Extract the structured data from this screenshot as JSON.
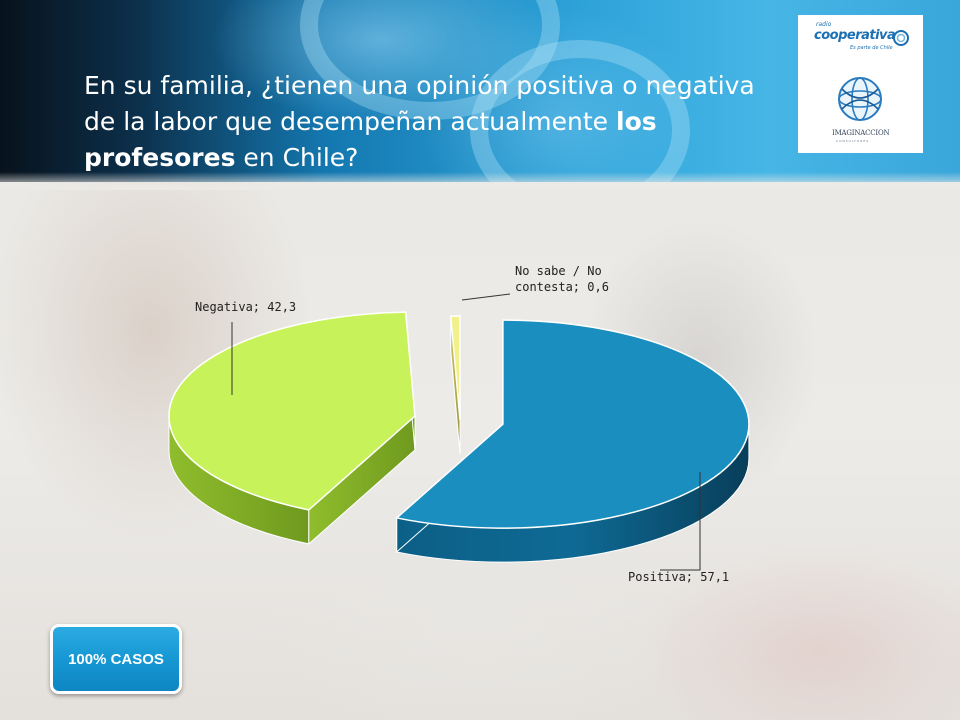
{
  "header": {
    "title_part1": "En su familia, ¿tienen una opinión positiva o negativa de la labor que desempeñan actualmente ",
    "title_bold": "los profesores",
    "title_part2": " en Chile?"
  },
  "logos": {
    "radio_small": "radio",
    "cooperativa": "cooperativa",
    "tagline": "Es parte de Chile",
    "imaginacion": "IMAGINACCION",
    "consultores": "CONSULTORES"
  },
  "badge": {
    "label": "100% CASOS"
  },
  "chart_data": {
    "type": "pie",
    "style": "3d-exploded",
    "slices": [
      {
        "label": "Positiva; 57,1",
        "value": 57.1,
        "color": "#1b8ec0"
      },
      {
        "label": "Negativa; 42,3",
        "value": 42.3,
        "color": "#c8f25a"
      },
      {
        "label": "No sabe / No contesta; 0,6",
        "label_lines": [
          "No sabe / No",
          "contesta; 0,6"
        ],
        "value": 0.6,
        "color": "#f2f08a"
      }
    ],
    "legend": "none"
  }
}
